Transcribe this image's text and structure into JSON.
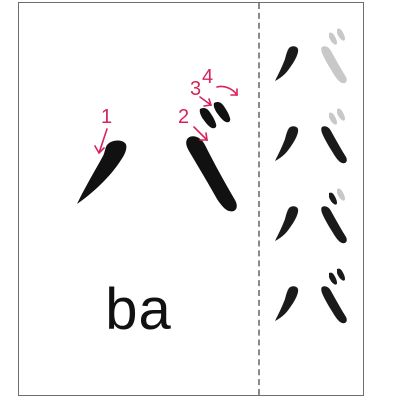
{
  "character": "バ",
  "romaji": "ba",
  "stroke_numbers": [
    "1",
    "2",
    "3",
    "4"
  ],
  "colors": {
    "border": "#6e6e6e",
    "stroke_ink": "#111111",
    "annotation": "#d6245a",
    "practice_ink": "#1a1a1a",
    "practice_faded": "#c8c8c8"
  }
}
